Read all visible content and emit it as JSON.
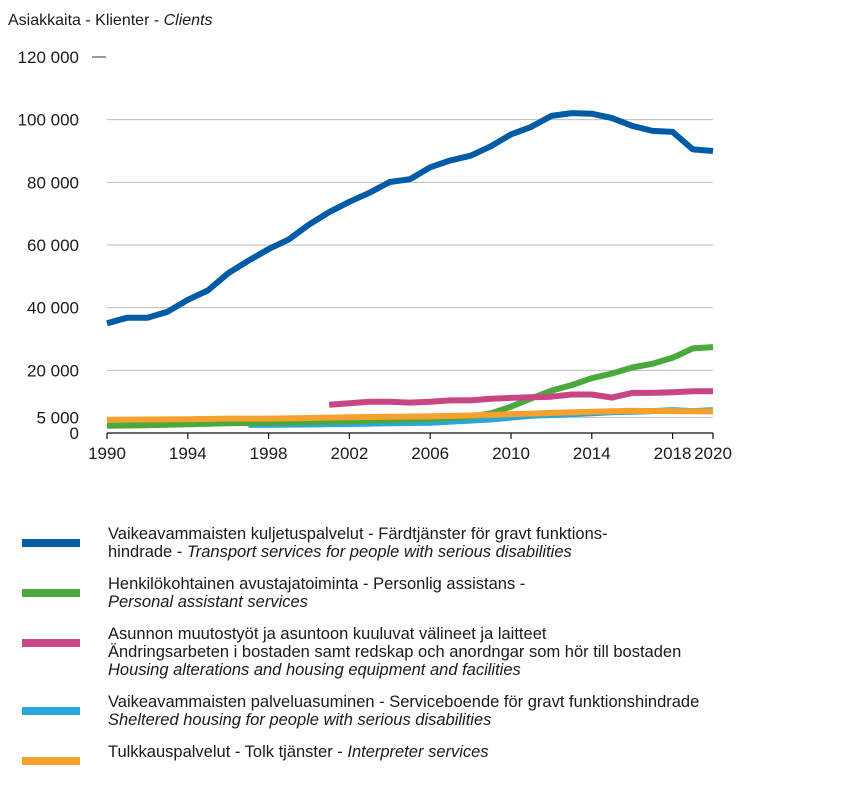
{
  "chart_data": {
    "type": "line",
    "ylabel": {
      "main": "Asiakkaita - Klienter - ",
      "italic": "Clients"
    },
    "x_ticks": [
      1990,
      1994,
      1998,
      2002,
      2006,
      2010,
      2014,
      2018,
      2020
    ],
    "y_ticks": [
      {
        "value": 0,
        "label": "0"
      },
      {
        "value": 5000,
        "label": "5 000"
      },
      {
        "value": 20000,
        "label": "20 000"
      },
      {
        "value": 40000,
        "label": "40 000"
      },
      {
        "value": 60000,
        "label": "60 000"
      },
      {
        "value": 80000,
        "label": "80 000"
      },
      {
        "value": 100000,
        "label": "100 000"
      },
      {
        "value": 120000,
        "label": "120 000"
      }
    ],
    "xlim": [
      1990,
      2020
    ],
    "ylim": [
      0,
      120000
    ],
    "grid": true,
    "series": [
      {
        "color": "#005ba6",
        "x": [
          1990,
          1991,
          1992,
          1993,
          1994,
          1995,
          1996,
          1997,
          1998,
          1999,
          2000,
          2001,
          2002,
          2003,
          2004,
          2005,
          2006,
          2007,
          2008,
          2009,
          2010,
          2011,
          2012,
          2013,
          2014,
          2015,
          2016,
          2017,
          2018,
          2019,
          2020
        ],
        "y": [
          35000,
          36800,
          36800,
          38700,
          42500,
          45500,
          51000,
          55000,
          58700,
          61800,
          66500,
          70500,
          73800,
          76700,
          80100,
          81000,
          84800,
          87000,
          88500,
          91500,
          95300,
          97700,
          101200,
          102100,
          101900,
          100500,
          98000,
          96400,
          96100,
          90500,
          90000
        ]
      },
      {
        "color": "#4aa83c",
        "x": [
          1990,
          1992,
          1994,
          1996,
          1998,
          2000,
          2002,
          2004,
          2006,
          2008,
          2009,
          2010,
          2011,
          2012,
          2013,
          2014,
          2015,
          2016,
          2017,
          2018,
          2019,
          2020
        ],
        "y": [
          2300,
          2500,
          2800,
          3100,
          3300,
          3500,
          3800,
          4100,
          4500,
          5200,
          6300,
          8400,
          11000,
          13500,
          15300,
          17500,
          19000,
          20900,
          22100,
          24000,
          27000,
          27400
        ]
      },
      {
        "color": "#c94685",
        "x": [
          2001,
          2002,
          2003,
          2004,
          2005,
          2006,
          2007,
          2008,
          2009,
          2010,
          2011,
          2012,
          2013,
          2014,
          2015,
          2016,
          2017,
          2018,
          2019,
          2020
        ],
        "y": [
          9000,
          9500,
          10000,
          10000,
          9700,
          10000,
          10400,
          10400,
          10900,
          11200,
          11400,
          11600,
          12300,
          12300,
          11300,
          12800,
          12800,
          13000,
          13300,
          13300
        ]
      },
      {
        "color": "#2aa7d6",
        "x": [
          1997,
          2000,
          2003,
          2006,
          2009,
          2011,
          2013,
          2015,
          2017,
          2018,
          2019,
          2020
        ],
        "y": [
          2600,
          2700,
          3000,
          3300,
          4300,
          5500,
          6000,
          6600,
          7000,
          7300,
          7000,
          7300
        ]
      },
      {
        "color": "#f5a12d",
        "x": [
          1990,
          1992,
          1994,
          1996,
          1998,
          2000,
          2002,
          2004,
          2006,
          2008,
          2010,
          2012,
          2014,
          2016,
          2018,
          2020
        ],
        "y": [
          4200,
          4300,
          4400,
          4600,
          4600,
          4800,
          5000,
          5200,
          5300,
          5600,
          6000,
          6400,
          6800,
          7100,
          7000,
          6900
        ]
      }
    ],
    "legend": [
      {
        "lines": [
          {
            "text": "Vaikeavammaisten kuljetuspalvelut - Färdtjänster för gravt funktions-"
          },
          {
            "text": "hindrade - ",
            "italic": "Transport services for people with serious disabilities"
          }
        ]
      },
      {
        "lines": [
          {
            "text": "Henkilökohtainen avustajatoiminta - Personlig assistans -"
          },
          {
            "text": "",
            "italic": "Personal assistant services"
          }
        ]
      },
      {
        "lines": [
          {
            "text": "Asunnon muutostyöt ja asuntoon kuuluvat välineet ja laitteet"
          },
          {
            "text": "Ändringsarbeten i bostaden samt redskap och anordngar som hör till bostaden"
          },
          {
            "text": "",
            "italic": "Housing alterations and housing equipment and facilities"
          }
        ]
      },
      {
        "lines": [
          {
            "text": "Vaikeavammaisten palveluasuminen - Serviceboende för gravt funktionshindrade"
          },
          {
            "text": "",
            "italic": "Sheltered housing for people with serious disabilities"
          }
        ]
      },
      {
        "lines": [
          {
            "text": "Tulkkauspalvelut - Tolk tjänster - ",
            "italic": "Interpreter services"
          }
        ]
      }
    ]
  }
}
